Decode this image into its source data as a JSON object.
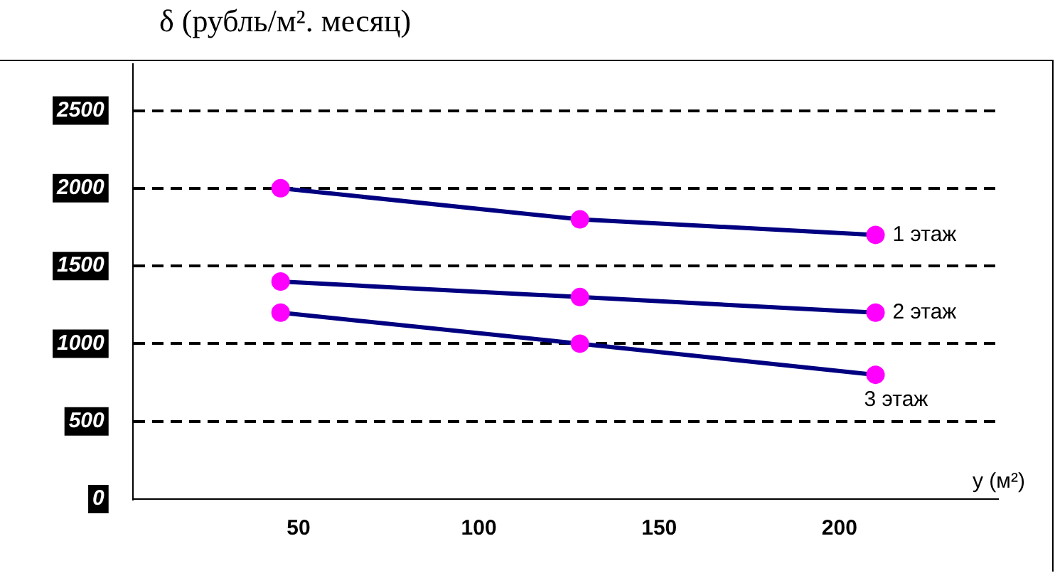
{
  "chart_data": {
    "type": "line",
    "ylabel": "δ (рубль/м². месяц)",
    "xlabel": "у (м²)",
    "xlim": [
      4,
      244
    ],
    "xticks": [
      50,
      100,
      150,
      200
    ],
    "ylim": [
      0,
      2800
    ],
    "yticks": [
      0,
      500,
      1000,
      1500,
      2000,
      2500
    ],
    "grid": "y",
    "legend": false,
    "marker": "circle",
    "line_style": "solid",
    "series": [
      {
        "name": "1 этаж",
        "color": "#000080",
        "colors": [
          "#ff00ff",
          "#ff00ff",
          "#ff00ff"
        ],
        "x": [
          45,
          128,
          210
        ],
        "values": [
          2000,
          1800,
          1700
        ]
      },
      {
        "name": "2 этаж",
        "color": "#000080",
        "colors": [
          "#ff00ff",
          "#ff00ff",
          "#ff00ff"
        ],
        "x": [
          45,
          128,
          210
        ],
        "values": [
          1400,
          1300,
          1200
        ]
      },
      {
        "name": "3 этаж",
        "color": "#000080",
        "colors": [
          "#ff00ff",
          "#ff00ff",
          "#ff00ff"
        ],
        "x": [
          45,
          128,
          210
        ],
        "values": [
          1200,
          1000,
          800
        ]
      }
    ]
  }
}
